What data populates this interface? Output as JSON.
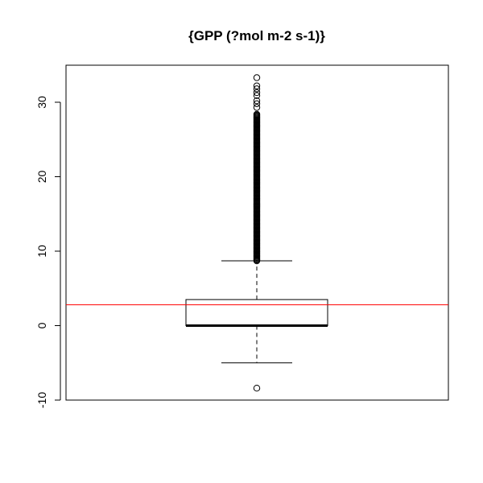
{
  "chart_data": {
    "type": "box",
    "title": "{GPP (?mol m-2 s-1)}",
    "xlabel": "",
    "ylabel": "",
    "ylim": [
      -10,
      35
    ],
    "yticks": [
      -10,
      0,
      10,
      20,
      30
    ],
    "box": {
      "lower_whisker": -5.0,
      "q1": 0.0,
      "median": 0.0,
      "q3": 3.5,
      "upper_whisker": 8.7
    },
    "outliers_low": [
      -8.4
    ],
    "outliers_high_range": [
      8.7,
      33.3
    ],
    "outliers_high_sample": [
      33.3,
      32.2,
      31.8,
      31.3,
      30.9,
      30.2,
      29.8,
      29.3
    ],
    "reference_line": {
      "y": 2.8,
      "color": "#ff0000"
    },
    "colors": {
      "axis": "#000000",
      "box": "#000000",
      "reference": "#ff0000"
    },
    "grid": false
  }
}
